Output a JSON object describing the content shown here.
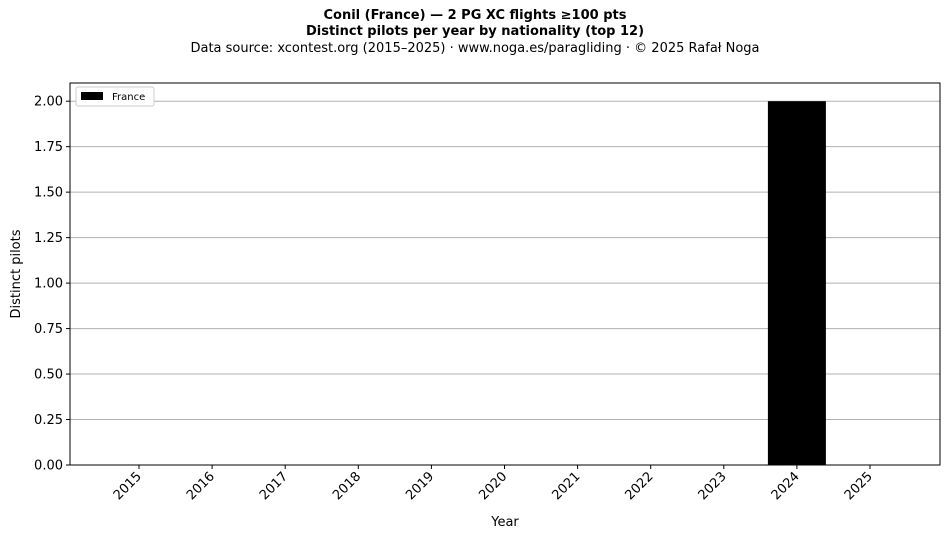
{
  "chart_data": {
    "type": "bar",
    "title": "Conil (France)  —  2 PG XC flights ≥100 pts",
    "subtitle": "Distinct pilots per year by nationality (top 12)",
    "source": "Data source: xcontest.org (2015–2025)  ·  www.noga.es/paragliding  ·  © 2025 Rafał Noga",
    "xlabel": "Year",
    "ylabel": "Distinct pilots",
    "categories": [
      "2015",
      "2016",
      "2017",
      "2018",
      "2019",
      "2020",
      "2021",
      "2022",
      "2023",
      "2024",
      "2025"
    ],
    "series": [
      {
        "name": "France",
        "color": "#000000",
        "values": [
          0,
          0,
          0,
          0,
          0,
          0,
          0,
          0,
          0,
          2,
          0
        ]
      }
    ],
    "ylim": [
      0,
      2.1
    ],
    "yticks": [
      "0.00",
      "0.25",
      "0.50",
      "0.75",
      "1.00",
      "1.25",
      "1.50",
      "1.75",
      "2.00"
    ],
    "grid": "horizontal",
    "legend": "top-left",
    "grid_color": "#b0b0b0"
  }
}
